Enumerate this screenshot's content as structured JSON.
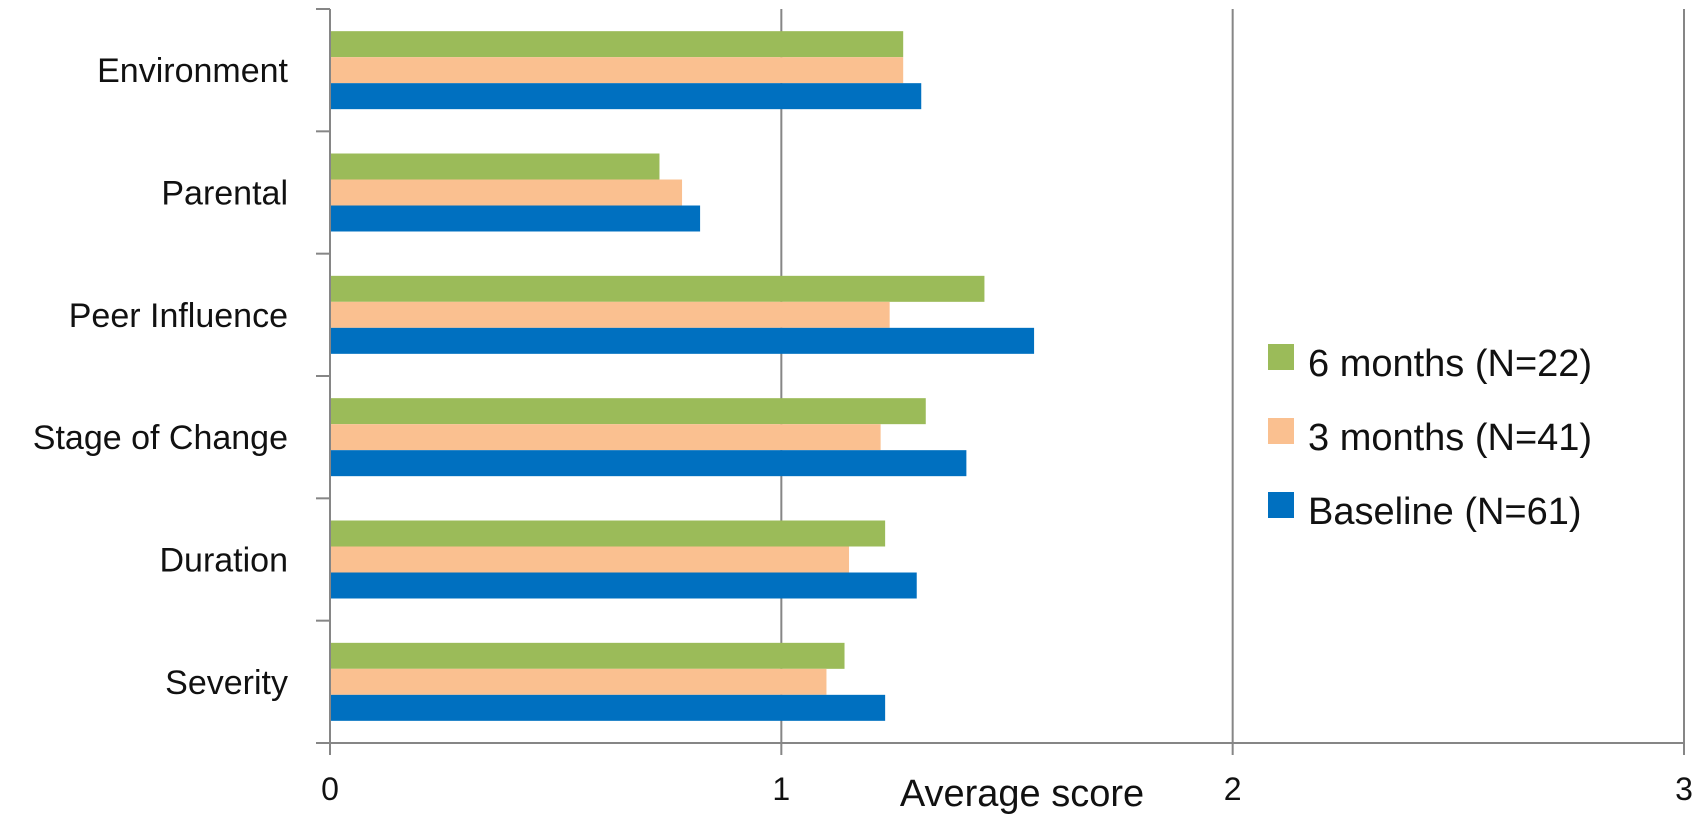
{
  "chart_data": {
    "type": "bar",
    "orientation": "horizontal",
    "categories": [
      "Environment",
      "Parental",
      "Peer Influence",
      "Stage of Change",
      "Duration",
      "Severity"
    ],
    "series": [
      {
        "name": "6 months (N=22)",
        "color": "#9BBB59",
        "values": [
          1.27,
          0.73,
          1.45,
          1.32,
          1.23,
          1.14
        ]
      },
      {
        "name": "3 months (N=41)",
        "color": "#FAC090",
        "values": [
          1.27,
          0.78,
          1.24,
          1.22,
          1.15,
          1.1
        ]
      },
      {
        "name": "Baseline (N=61)",
        "color": "#0070C0",
        "values": [
          1.31,
          0.82,
          1.56,
          1.41,
          1.3,
          1.23
        ]
      }
    ],
    "xlabel": "Average score",
    "ylabel": "",
    "xlim": [
      0,
      3
    ],
    "xticks": [
      "0",
      "1",
      "2",
      "3"
    ],
    "grid": true,
    "legend_position": "right"
  }
}
